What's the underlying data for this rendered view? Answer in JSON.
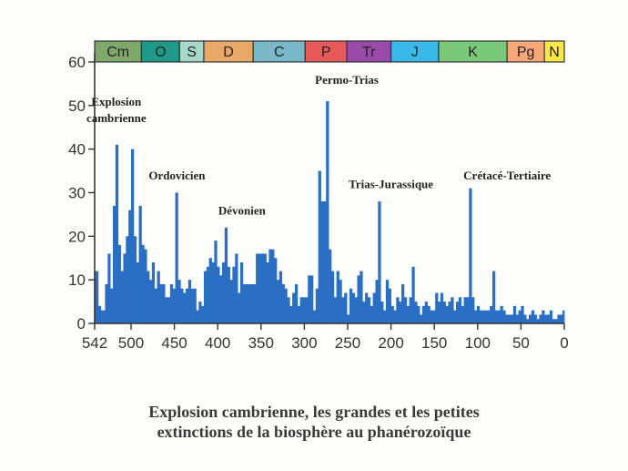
{
  "caption": {
    "line1": "Explosion cambrienne, les grandes et les petites",
    "line2": "extinctions de la biosphère au phanérozoïque"
  },
  "chart_data": {
    "type": "bar",
    "title": "",
    "xlabel": "",
    "ylabel": "",
    "xlim": [
      542,
      0
    ],
    "ylim": [
      0,
      60
    ],
    "grid": false,
    "bar_color": "#2a6fc4",
    "x_ticks": [
      {
        "value": 542,
        "label": "542"
      },
      {
        "value": 500,
        "label": "500"
      },
      {
        "value": 450,
        "label": "450"
      },
      {
        "value": 400,
        "label": "400"
      },
      {
        "value": 350,
        "label": "350"
      },
      {
        "value": 300,
        "label": "300"
      },
      {
        "value": 250,
        "label": "250"
      },
      {
        "value": 200,
        "label": "200"
      },
      {
        "value": 150,
        "label": "150"
      },
      {
        "value": 100,
        "label": "100"
      },
      {
        "value": 50,
        "label": "50"
      },
      {
        "value": 0,
        "label": "0"
      }
    ],
    "y_ticks": [
      {
        "value": 0,
        "label": "0"
      },
      {
        "value": 10,
        "label": "10"
      },
      {
        "value": 20,
        "label": "20"
      },
      {
        "value": 30,
        "label": "30"
      },
      {
        "value": 40,
        "label": "40"
      },
      {
        "value": 50,
        "label": "50"
      },
      {
        "value": 60,
        "label": "60"
      }
    ],
    "periods": [
      {
        "label": "Cm",
        "start": 542,
        "end": 488,
        "color": "#7fa86a"
      },
      {
        "label": "O",
        "start": 488,
        "end": 444,
        "color": "#1f9a8a"
      },
      {
        "label": "S",
        "start": 444,
        "end": 416,
        "color": "#a8d8c8"
      },
      {
        "label": "D",
        "start": 416,
        "end": 359,
        "color": "#e8a868"
      },
      {
        "label": "C",
        "start": 359,
        "end": 299,
        "color": "#78b8c8"
      },
      {
        "label": "P",
        "start": 299,
        "end": 251,
        "color": "#e85a5a"
      },
      {
        "label": "Tr",
        "start": 251,
        "end": 200,
        "color": "#9a4aa8"
      },
      {
        "label": "J",
        "start": 200,
        "end": 145,
        "color": "#3ab8e8"
      },
      {
        "label": "K",
        "start": 145,
        "end": 66,
        "color": "#7ac87a"
      },
      {
        "label": "Pg",
        "start": 66,
        "end": 23,
        "color": "#f8a878"
      },
      {
        "label": "N",
        "start": 23,
        "end": 0,
        "color": "#f8e848"
      }
    ],
    "annotations": [
      {
        "lines": [
          "Explosion",
          "cambrienne"
        ],
        "x": 517,
        "y": 50
      },
      {
        "lines": [
          "Ordovicien"
        ],
        "x": 447,
        "y": 33
      },
      {
        "lines": [
          "Dévonien"
        ],
        "x": 372,
        "y": 25
      },
      {
        "lines": [
          "Permo-Trias"
        ],
        "x": 251,
        "y": 55
      },
      {
        "lines": [
          "Trias-Jurassique"
        ],
        "x": 200,
        "y": 31
      },
      {
        "lines": [
          "Crétacé-Tertiaire"
        ],
        "x": 66,
        "y": 33
      }
    ],
    "series": [
      {
        "x": [
          542,
          538,
          535,
          530,
          527,
          524,
          521,
          518,
          515,
          512,
          509,
          506,
          503,
          500,
          497,
          494,
          491,
          488,
          485,
          482,
          479,
          476,
          473,
          470,
          467,
          464,
          461,
          458,
          455,
          452,
          449,
          446,
          443,
          440,
          437,
          434,
          431,
          428,
          425,
          422,
          419,
          416,
          413,
          410,
          407,
          404,
          401,
          398,
          395,
          392,
          389,
          386,
          383,
          380,
          377,
          374,
          371,
          368,
          365,
          362,
          359,
          356,
          353,
          350,
          347,
          344,
          341,
          338,
          335,
          332,
          329,
          326,
          323,
          320,
          317,
          314,
          311,
          308,
          305,
          302,
          299,
          296,
          293,
          290,
          287,
          284,
          281,
          278,
          275,
          272,
          269,
          266,
          263,
          260,
          257,
          254,
          251,
          248,
          245,
          242,
          239,
          236,
          233,
          230,
          227,
          224,
          221,
          218,
          215,
          212,
          209,
          206,
          203,
          200,
          197,
          194,
          191,
          188,
          185,
          182,
          179,
          176,
          173,
          170,
          167,
          164,
          161,
          158,
          155,
          152,
          149,
          146,
          143,
          140,
          137,
          134,
          131,
          128,
          125,
          122,
          119,
          116,
          113,
          110,
          107,
          104,
          101,
          98,
          95,
          92,
          89,
          86,
          83,
          80,
          77,
          74,
          71,
          68,
          65,
          62,
          59,
          56,
          53,
          50,
          47,
          44,
          41,
          38,
          35,
          32,
          29,
          26,
          23,
          20,
          17,
          14,
          11,
          8,
          5,
          2
        ],
        "y": [
          12,
          4,
          3,
          9,
          16,
          8,
          27,
          41,
          18,
          12,
          16,
          20,
          26,
          40,
          20,
          14,
          27,
          18,
          17,
          12,
          10,
          14,
          8,
          12,
          9,
          9,
          6,
          6,
          9,
          8,
          30,
          10,
          8,
          7,
          8,
          10,
          8,
          8,
          3,
          5,
          4,
          12,
          13,
          15,
          14,
          19,
          13,
          11,
          14,
          22,
          13,
          10,
          13,
          16,
          7,
          14,
          9,
          9,
          9,
          9,
          9,
          16,
          16,
          16,
          16,
          14,
          17,
          17,
          15,
          10,
          12,
          9,
          8,
          6,
          4,
          7,
          9,
          4,
          6,
          6,
          6,
          11,
          11,
          3,
          8,
          35,
          28,
          28,
          51,
          17,
          12,
          6,
          12,
          10,
          6,
          7,
          2,
          8,
          7,
          6,
          11,
          12,
          5,
          7,
          6,
          4,
          7,
          10,
          28,
          5,
          3,
          10,
          8,
          4,
          3,
          6,
          5,
          9,
          6,
          4,
          6,
          13,
          5,
          4,
          2,
          4,
          5,
          4,
          3,
          3,
          7,
          5,
          7,
          5,
          4,
          5,
          6,
          3,
          5,
          6,
          4,
          6,
          6,
          31,
          6,
          3,
          4,
          3,
          3,
          3,
          3,
          4,
          12,
          3,
          3,
          4,
          3,
          2,
          2,
          2,
          4,
          2,
          3,
          4,
          2,
          1,
          2,
          3,
          2,
          1,
          2,
          3,
          2,
          2,
          3,
          1,
          1,
          2,
          2,
          3
        ]
      }
    ]
  }
}
